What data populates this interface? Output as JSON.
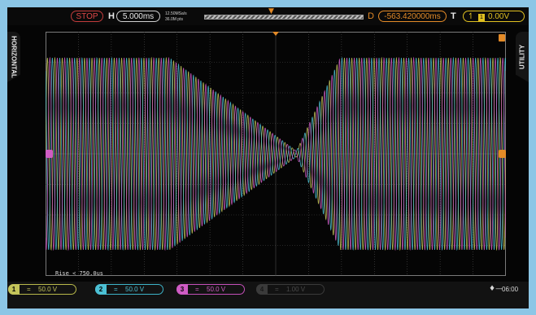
{
  "topbar": {
    "run_state": "STOP",
    "horizontal_label": "H",
    "timebase": "5.000ms",
    "sample_rate": "12.50MSa/s",
    "memory_depth": "36.0M pts",
    "delay_label": "D",
    "delay_value": "-563.420000ms",
    "trigger_label": "T",
    "trigger_channel": "1",
    "trigger_level": "0.00V"
  },
  "side_tabs": {
    "left": "HORIZONTAL",
    "right": "UTILITY"
  },
  "measurement": {
    "rise": "Rise < 750.0us"
  },
  "channels": [
    {
      "number": "1",
      "coupling": "=",
      "scale": "50.0 V",
      "color": "#c4c45a",
      "active": true
    },
    {
      "number": "2",
      "coupling": "=",
      "scale": "50.0 V",
      "color": "#4cc0d4",
      "active": true
    },
    {
      "number": "3",
      "coupling": "=",
      "scale": "50.0 V",
      "color": "#cf5cc4",
      "active": true
    },
    {
      "number": "4",
      "coupling": "=",
      "scale": "1.00 V",
      "color": "#3a3a3a",
      "active": false
    }
  ],
  "status": {
    "clock": "06:00"
  },
  "icons": {
    "trigger_edge": "rising-edge-icon",
    "usb": "usb-icon",
    "memory_marker": "trigger-position-marker-icon",
    "ch_marker_left": "ch3-offset-marker-icon",
    "ch_marker_right": "trigger-level-marker-icon"
  },
  "colors": {
    "background": "#050505",
    "grid": "#4d4d4d",
    "accent_orange": "#e38a27",
    "trigger_yellow": "#e0c020",
    "stop_red": "#e04848"
  }
}
